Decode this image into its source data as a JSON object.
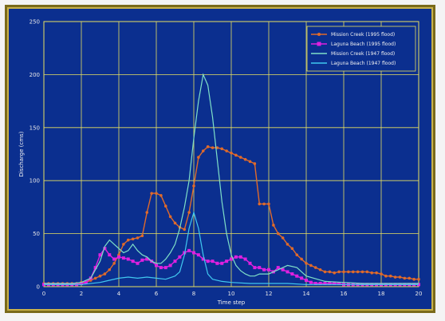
{
  "chart_data": {
    "type": "line",
    "title": "",
    "xlabel": "Time step",
    "ylabel": "Discharge (cms)",
    "xlim": [
      0,
      20
    ],
    "ylim": [
      0,
      250
    ],
    "xticks": [
      0,
      2,
      4,
      6,
      8,
      10,
      12,
      14,
      16,
      18,
      20
    ],
    "yticks": [
      0,
      50,
      100,
      150,
      200,
      250
    ],
    "grid": true,
    "legend_position": "top-right",
    "series": [
      {
        "name": "Mission Creek (1995 flood)",
        "color": "#e06a2a",
        "marker": "circle",
        "x": [
          0,
          0.25,
          0.5,
          0.75,
          1,
          1.25,
          1.5,
          1.75,
          2,
          2.25,
          2.5,
          2.75,
          3,
          3.25,
          3.5,
          3.75,
          4,
          4.25,
          4.5,
          4.75,
          5,
          5.25,
          5.5,
          5.75,
          6,
          6.25,
          6.5,
          6.75,
          7,
          7.25,
          7.5,
          7.75,
          8,
          8.25,
          8.5,
          8.75,
          9,
          9.25,
          9.5,
          9.75,
          10,
          10.25,
          10.5,
          10.75,
          11,
          11.25,
          11.5,
          11.75,
          12,
          12.25,
          12.5,
          12.75,
          13,
          13.25,
          13.5,
          13.75,
          14,
          14.25,
          14.5,
          14.75,
          15,
          15.25,
          15.5,
          15.75,
          16,
          16.25,
          16.5,
          16.75,
          17,
          17.25,
          17.5,
          17.75,
          18,
          18.25,
          18.5,
          18.75,
          19,
          19.25,
          19.5,
          19.75,
          20
        ],
        "values": [
          3,
          3,
          3,
          3,
          3,
          3,
          3,
          3,
          4,
          4,
          6,
          8,
          10,
          12,
          16,
          22,
          30,
          40,
          44,
          45,
          46,
          48,
          70,
          88,
          88,
          86,
          76,
          66,
          60,
          56,
          54,
          70,
          95,
          122,
          128,
          132,
          131,
          131,
          130,
          128,
          126,
          124,
          122,
          120,
          118,
          116,
          78,
          78,
          78,
          58,
          50,
          46,
          40,
          36,
          30,
          26,
          22,
          20,
          18,
          16,
          14,
          14,
          13,
          14,
          14,
          14,
          14,
          14,
          14,
          14,
          13,
          13,
          12,
          10,
          10,
          9,
          9,
          8,
          8,
          7,
          7
        ]
      },
      {
        "name": "Laguna Beach (1995 flood)",
        "color": "#e020e0",
        "marker": "square",
        "x": [
          0,
          0.25,
          0.5,
          0.75,
          1,
          1.25,
          1.5,
          1.75,
          2,
          2.25,
          2.5,
          2.75,
          3,
          3.25,
          3.5,
          3.75,
          4,
          4.25,
          4.5,
          4.75,
          5,
          5.25,
          5.5,
          5.75,
          6,
          6.25,
          6.5,
          6.75,
          7,
          7.25,
          7.5,
          7.75,
          8,
          8.25,
          8.5,
          8.75,
          9,
          9.25,
          9.5,
          9.75,
          10,
          10.25,
          10.5,
          10.75,
          11,
          11.25,
          11.5,
          11.75,
          12,
          12.25,
          12.5,
          12.75,
          13,
          13.25,
          13.5,
          13.75,
          14,
          14.25,
          14.5,
          14.75,
          15,
          15.25,
          15.5,
          15.75,
          16,
          16.25,
          16.5,
          16.75,
          17,
          17.25,
          17.5,
          17.75,
          18,
          18.25,
          18.5,
          18.75,
          19,
          19.25,
          19.5,
          19.75,
          20
        ],
        "values": [
          2,
          2,
          2,
          2,
          2,
          2,
          2,
          2,
          3,
          4,
          8,
          18,
          30,
          36,
          30,
          26,
          28,
          27,
          26,
          24,
          22,
          25,
          26,
          24,
          20,
          18,
          18,
          20,
          24,
          28,
          32,
          34,
          32,
          30,
          26,
          24,
          24,
          22,
          22,
          24,
          26,
          28,
          28,
          26,
          22,
          18,
          18,
          16,
          16,
          14,
          18,
          16,
          14,
          12,
          10,
          8,
          6,
          4,
          3,
          3,
          3,
          3,
          3,
          3,
          2,
          2,
          2,
          2,
          2,
          2,
          2,
          2,
          2,
          2,
          2,
          2,
          2,
          2,
          2,
          2,
          2
        ]
      },
      {
        "name": "Mission Creek (1947 flood)",
        "color": "#7fe0c8",
        "marker": "none",
        "x": [
          0,
          0.5,
          1,
          1.5,
          2,
          2.5,
          3,
          3.25,
          3.5,
          3.75,
          4,
          4.25,
          4.5,
          4.75,
          5,
          5.25,
          5.5,
          5.75,
          6,
          6.25,
          6.5,
          6.75,
          7,
          7.25,
          7.5,
          7.75,
          8,
          8.25,
          8.5,
          8.75,
          9,
          9.25,
          9.5,
          9.75,
          10,
          10.25,
          10.5,
          10.75,
          11,
          11.25,
          11.5,
          12,
          12.5,
          13,
          13.5,
          14,
          15,
          16,
          17,
          18,
          19,
          20
        ],
        "values": [
          3,
          3,
          3,
          3,
          4,
          8,
          24,
          38,
          44,
          40,
          36,
          32,
          34,
          40,
          34,
          30,
          28,
          24,
          22,
          22,
          26,
          32,
          40,
          55,
          75,
          100,
          140,
          175,
          200,
          190,
          160,
          120,
          80,
          50,
          30,
          20,
          15,
          12,
          10,
          10,
          12,
          12,
          16,
          20,
          18,
          10,
          5,
          4,
          3,
          3,
          3,
          3
        ]
      },
      {
        "name": "Laguna Beach (1947 flood)",
        "color": "#40c8f0",
        "marker": "none",
        "x": [
          0,
          1,
          2,
          3,
          3.5,
          4,
          4.5,
          5,
          5.5,
          6,
          6.5,
          7,
          7.25,
          7.5,
          7.75,
          8,
          8.25,
          8.5,
          8.75,
          9,
          9.5,
          10,
          11,
          12,
          13,
          14,
          15,
          16,
          17,
          18,
          19,
          20
        ],
        "values": [
          2,
          2,
          2,
          4,
          6,
          8,
          9,
          8,
          9,
          8,
          7,
          10,
          14,
          30,
          55,
          70,
          55,
          30,
          12,
          7,
          5,
          4,
          3,
          3,
          3,
          2,
          2,
          2,
          2,
          2,
          2,
          2
        ]
      }
    ]
  }
}
